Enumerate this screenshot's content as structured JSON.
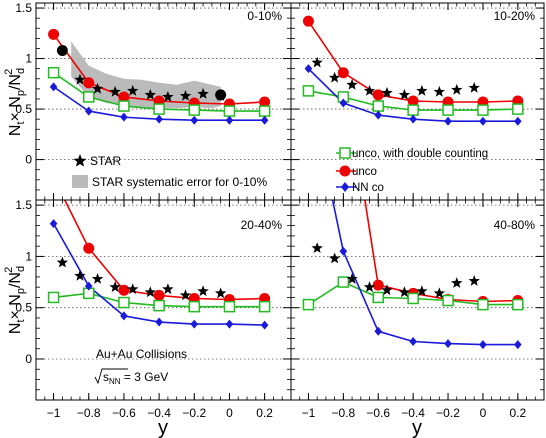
{
  "figure": {
    "ylabel_main": "N",
    "ylabel_t": "t",
    "ylabel_times": "× N",
    "ylabel_p": "p",
    "ylabel_div": "/N",
    "ylabel_d": "d",
    "ylabel_sup": "2",
    "xlabel": "y",
    "collision": "Au+Au Collisions",
    "energy_prefix": "s",
    "energy_sub": "NN",
    "energy_value": " = 3 GeV",
    "legend_star": "STAR",
    "legend_syst": "STAR systematic error for 0-10%",
    "legend_green": "unco, with double counting",
    "legend_red": "unco",
    "legend_blue": "NN co",
    "colors": {
      "red": "#ee0000",
      "green": "#22bb22",
      "blue": "#1a1adc",
      "syst": "#bbbbbb",
      "star": "#000000"
    }
  },
  "chart_data": [
    {
      "type": "line",
      "panel": "0-10%",
      "title": "0-10%",
      "xlim": [
        -1.1,
        0.35
      ],
      "ylim": [
        -0.4,
        1.55
      ],
      "xticks": [],
      "yticks": [
        "0",
        "0.5",
        "1",
        "1.5"
      ],
      "series": [
        {
          "name": "unco",
          "color": "red",
          "marker": "circle",
          "x": [
            -1.0,
            -0.8,
            -0.6,
            -0.4,
            -0.2,
            0.0,
            0.2
          ],
          "y": [
            1.24,
            0.76,
            0.62,
            0.58,
            0.56,
            0.55,
            0.57
          ]
        },
        {
          "name": "unco, with double counting",
          "color": "green",
          "marker": "square",
          "x": [
            -1.0,
            -0.8,
            -0.6,
            -0.4,
            -0.2,
            0.0,
            0.2
          ],
          "y": [
            0.86,
            0.62,
            0.53,
            0.5,
            0.49,
            0.48,
            0.48
          ]
        },
        {
          "name": "NN co",
          "color": "blue",
          "marker": "diamond",
          "x": [
            -1.0,
            -0.8,
            -0.6,
            -0.4,
            -0.2,
            0.0,
            0.2
          ],
          "y": [
            0.72,
            0.48,
            0.42,
            0.4,
            0.39,
            0.39,
            0.39
          ]
        },
        {
          "name": "STAR",
          "color": "star",
          "marker": "star",
          "x": [
            -0.85,
            -0.75,
            -0.65,
            -0.55,
            -0.45,
            -0.35,
            -0.25,
            -0.15,
            -0.05
          ],
          "y": [
            0.79,
            0.7,
            0.67,
            0.68,
            0.64,
            0.62,
            0.63,
            0.65,
            0.63
          ]
        },
        {
          "name": "",
          "color": "star",
          "marker": "circle",
          "x": [
            -0.95,
            -0.05
          ],
          "y": [
            1.08,
            0.64
          ]
        }
      ],
      "band": {
        "x": [
          -0.9,
          -0.8,
          -0.7,
          -0.6,
          -0.5,
          -0.4,
          -0.3,
          -0.2,
          -0.1,
          -0.05
        ],
        "low": [
          0.82,
          0.62,
          0.56,
          0.54,
          0.52,
          0.51,
          0.51,
          0.52,
          0.51,
          0.53
        ],
        "high": [
          1.17,
          0.93,
          0.85,
          0.8,
          0.79,
          0.76,
          0.74,
          0.78,
          0.74,
          0.72
        ]
      }
    },
    {
      "type": "line",
      "panel": "10-20%",
      "title": "10-20%",
      "xlim": [
        -1.1,
        0.35
      ],
      "ylim": [
        -0.4,
        1.55
      ],
      "xticks": [],
      "yticks": [],
      "series": [
        {
          "name": "unco",
          "color": "red",
          "marker": "circle",
          "x": [
            -1.0,
            -0.8,
            -0.6,
            -0.4,
            -0.2,
            0.0,
            0.2
          ],
          "y": [
            1.37,
            0.86,
            0.64,
            0.58,
            0.57,
            0.57,
            0.58
          ]
        },
        {
          "name": "unco, with double counting",
          "color": "green",
          "marker": "square",
          "x": [
            -1.0,
            -0.8,
            -0.6,
            -0.4,
            -0.2,
            0.0,
            0.2
          ],
          "y": [
            0.68,
            0.62,
            0.53,
            0.49,
            0.49,
            0.49,
            0.5
          ]
        },
        {
          "name": "NN co",
          "color": "blue",
          "marker": "diamond",
          "x": [
            -1.0,
            -0.8,
            -0.6,
            -0.4,
            -0.2,
            0.0,
            0.2
          ],
          "y": [
            0.9,
            0.56,
            0.44,
            0.4,
            0.38,
            0.38,
            0.38
          ]
        },
        {
          "name": "STAR",
          "color": "star",
          "marker": "star",
          "x": [
            -0.95,
            -0.85,
            -0.75,
            -0.65,
            -0.55,
            -0.45,
            -0.35,
            -0.25,
            -0.15,
            -0.05
          ],
          "y": [
            0.96,
            0.81,
            0.74,
            0.68,
            0.66,
            0.64,
            0.68,
            0.67,
            0.69,
            0.71
          ]
        }
      ]
    },
    {
      "type": "line",
      "panel": "20-40%",
      "title": "20-40%",
      "xlim": [
        -1.1,
        0.35
      ],
      "ylim": [
        -0.4,
        1.55
      ],
      "xticks": [
        "−1",
        "−0.8",
        "−0.6",
        "−0.4",
        "−0.2",
        "0",
        "0.2"
      ],
      "yticks": [
        "0",
        "0.5",
        "1",
        "1.5"
      ],
      "series": [
        {
          "name": "unco",
          "color": "red",
          "marker": "circle",
          "x": [
            -0.98,
            -0.8,
            -0.6,
            -0.4,
            -0.2,
            0.0,
            0.2
          ],
          "y": [
            1.7,
            1.08,
            0.67,
            0.62,
            0.59,
            0.58,
            0.59
          ]
        },
        {
          "name": "unco, with double counting",
          "color": "green",
          "marker": "square",
          "x": [
            -1.0,
            -0.8,
            -0.6,
            -0.4,
            -0.2,
            0.0,
            0.2
          ],
          "y": [
            0.6,
            0.64,
            0.55,
            0.52,
            0.51,
            0.51,
            0.51
          ]
        },
        {
          "name": "NN co",
          "color": "blue",
          "marker": "diamond",
          "x": [
            -1.0,
            -0.8,
            -0.6,
            -0.4,
            -0.2,
            0.0,
            0.2
          ],
          "y": [
            1.32,
            0.71,
            0.42,
            0.36,
            0.34,
            0.34,
            0.33
          ]
        },
        {
          "name": "STAR",
          "color": "star",
          "marker": "star",
          "x": [
            -0.95,
            -0.85,
            -0.75,
            -0.65,
            -0.55,
            -0.45,
            -0.35,
            -0.25,
            -0.15,
            -0.05
          ],
          "y": [
            0.94,
            0.81,
            0.78,
            0.7,
            0.68,
            0.65,
            0.68,
            0.62,
            0.66,
            0.64
          ]
        }
      ]
    },
    {
      "type": "line",
      "panel": "40-80%",
      "title": "40-80%",
      "xlim": [
        -1.1,
        0.35
      ],
      "ylim": [
        -0.4,
        1.55
      ],
      "xticks": [
        "−1",
        "−0.8",
        "−0.6",
        "−0.4",
        "−0.2",
        "0",
        "0.2"
      ],
      "yticks": [],
      "series": [
        {
          "name": "unco",
          "color": "red",
          "marker": "circle",
          "x": [
            -0.69,
            -0.6,
            -0.4,
            -0.2,
            0.0,
            0.2
          ],
          "y": [
            1.7,
            0.72,
            0.64,
            0.58,
            0.56,
            0.57
          ]
        },
        {
          "name": "unco, with double counting",
          "color": "green",
          "marker": "square",
          "x": [
            -1.0,
            -0.8,
            -0.6,
            -0.4,
            -0.2,
            0.0,
            0.2
          ],
          "y": [
            0.53,
            0.75,
            0.6,
            0.59,
            0.57,
            0.53,
            0.53
          ]
        },
        {
          "name": "NN co",
          "color": "blue",
          "marker": "diamond",
          "x": [
            -0.88,
            -0.8,
            -0.6,
            -0.4,
            -0.2,
            0.0,
            0.2
          ],
          "y": [
            1.7,
            1.05,
            0.27,
            0.17,
            0.15,
            0.14,
            0.14
          ]
        },
        {
          "name": "STAR",
          "color": "star",
          "marker": "star",
          "x": [
            -0.95,
            -0.85,
            -0.75,
            -0.65,
            -0.55,
            -0.45,
            -0.35,
            -0.25,
            -0.15,
            -0.05
          ],
          "y": [
            1.08,
            0.98,
            0.78,
            0.7,
            0.67,
            0.65,
            0.66,
            0.64,
            0.74,
            0.76
          ]
        }
      ]
    }
  ]
}
